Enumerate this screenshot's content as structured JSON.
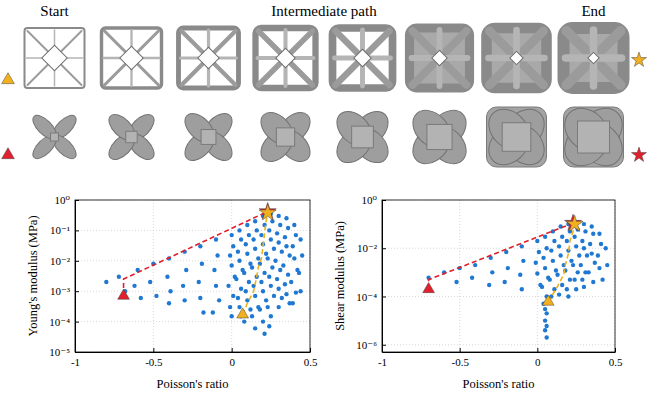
{
  "figure": {
    "headers": [
      "Start",
      "Intermediate path",
      "End"
    ]
  },
  "chart_data": [
    {
      "type": "scatter",
      "x_label": "Poisson's ratio",
      "y_label": "Young's modulus (MPa)",
      "log": "y",
      "grid": true,
      "xlim": [
        -1,
        0.5
      ],
      "xticks": [
        -1,
        -0.5,
        0,
        0.5
      ],
      "ylim": [
        1e-05,
        1
      ],
      "yticks": [
        {
          "value": 1,
          "label": "10⁰"
        },
        {
          "value": 0.1,
          "label": "10⁻¹"
        },
        {
          "value": 0.01,
          "label": "10⁻²"
        },
        {
          "value": 0.001,
          "label": "10⁻³"
        },
        {
          "value": 0.0001,
          "label": "10⁻⁴"
        },
        {
          "value": 1e-05,
          "label": "10⁻⁵"
        }
      ],
      "series": [
        {
          "type": "scatter",
          "color": "#1f78d1",
          "marker": "circle",
          "x": [
            0.3,
            0.31,
            0.29,
            0.3,
            0.32,
            0.28,
            0.31,
            0.29,
            0.3,
            0.32,
            0.3,
            0.35,
            0.36,
            0.34,
            0.35,
            0.37,
            0.33,
            0.36,
            0.34,
            0.35,
            0.37,
            0.4,
            0.41,
            0.39,
            0.4,
            0.42,
            0.38,
            0.41,
            0.39,
            0.44,
            0.45,
            0.43,
            0.44,
            0.25,
            0.26,
            0.24,
            0.25,
            0.27,
            0.23,
            0.26,
            0.24,
            0.25,
            0.27,
            0.23,
            0.25,
            0.24,
            0.2,
            0.21,
            0.19,
            0.2,
            0.22,
            0.18,
            0.21,
            0.19,
            0.2,
            0.22,
            0.18,
            0.2,
            0.21,
            0.15,
            0.16,
            0.14,
            0.15,
            0.17,
            0.13,
            0.16,
            0.14,
            0.15,
            0.17,
            0.13,
            0.15,
            0.1,
            0.11,
            0.09,
            0.1,
            0.12,
            0.08,
            0.11,
            0.09,
            0.1,
            0.12,
            0.08,
            0.05,
            0.06,
            0.04,
            0.05,
            0.07,
            0.03,
            0.06,
            0.04,
            0.05,
            0.06,
            0,
            0.01,
            -0.01,
            0,
            0.02,
            -0.02,
            0.01,
            -0.01,
            0,
            -0.1,
            -0.09,
            -0.11,
            -0.1,
            -0.08,
            -0.12,
            -0.2,
            -0.19,
            -0.21,
            -0.2,
            -0.18,
            -0.3,
            -0.29,
            -0.31,
            -0.3,
            -0.4,
            -0.41,
            -0.39,
            -0.4,
            -0.5,
            -0.52,
            -0.48,
            -0.6,
            -0.62,
            -0.58,
            -0.72,
            -0.68,
            -0.8
          ],
          "values": [
            0.3,
            0.15,
            0.08,
            0.04,
            0.02,
            0.01,
            0.005,
            0.0025,
            0.0012,
            0.0006,
            0.0003,
            0.25,
            0.12,
            0.06,
            0.03,
            0.015,
            0.007,
            0.0035,
            0.0017,
            0.0008,
            0.0004,
            0.15,
            0.07,
            0.03,
            0.012,
            0.005,
            0.002,
            0.0009,
            0.0004,
            0.05,
            0.015,
            0.004,
            0.001,
            0.35,
            0.2,
            0.1,
            0.05,
            0.025,
            0.012,
            0.006,
            0.003,
            0.0015,
            0.0007,
            0.0003,
            0.00015,
            7e-05,
            0.3,
            0.15,
            0.07,
            0.035,
            0.017,
            0.008,
            0.004,
            0.002,
            0.001,
            0.0005,
            0.00025,
            0.0001,
            4e-05,
            0.2,
            0.1,
            0.05,
            0.025,
            0.012,
            0.006,
            0.003,
            0.0015,
            0.0007,
            0.0003,
            0.00015,
            6e-05,
            0.15,
            0.07,
            0.035,
            0.017,
            0.008,
            0.004,
            0.002,
            0.001,
            0.0005,
            0.00025,
            0.0001,
            0.1,
            0.05,
            0.02,
            0.01,
            0.005,
            0.0025,
            0.0012,
            0.0006,
            0.0003,
            0.00015,
            0.07,
            0.03,
            0.015,
            0.007,
            0.003,
            0.0015,
            0.0007,
            0.0003,
            0.00015,
            0.05,
            0.015,
            0.005,
            0.0015,
            0.0005,
            0.0002,
            0.03,
            0.008,
            0.002,
            0.0006,
            0.0002,
            0.02,
            0.005,
            0.0015,
            0.0005,
            0.012,
            0.003,
            0.001,
            0.0004,
            0.008,
            0.002,
            0.0007,
            0.005,
            0.0015,
            0.0006,
            0.003,
            0.001,
            0.002
          ]
        },
        {
          "type": "line",
          "color": "#e0202c",
          "line_style": "dashed",
          "x": [
            -0.69,
            -0.69,
            0.23
          ],
          "values": [
            0.0007,
            0.0025,
            0.42
          ]
        },
        {
          "type": "line",
          "color": "#eab21b",
          "line_style": "dashed",
          "x": [
            0.07,
            0.1,
            0.14,
            0.16,
            0.17,
            0.19,
            0.2,
            0.21,
            0.22,
            0.23
          ],
          "values": [
            0.00017,
            0.0004,
            0.001,
            0.003,
            0.006,
            0.012,
            0.03,
            0.08,
            0.2,
            0.38
          ]
        },
        {
          "type": "scatter",
          "color": "#e0202c",
          "marker": "triangle",
          "x": [
            -0.69
          ],
          "values": [
            0.0007
          ]
        },
        {
          "type": "scatter",
          "color": "#e0202c",
          "marker": "star",
          "x": [
            0.23
          ],
          "values": [
            0.42
          ]
        },
        {
          "type": "scatter",
          "color": "#f2b01e",
          "marker": "triangle",
          "x": [
            0.07
          ],
          "values": [
            0.00017
          ]
        },
        {
          "type": "scatter",
          "color": "#f2b01e",
          "marker": "star",
          "x": [
            0.23
          ],
          "values": [
            0.38
          ]
        }
      ]
    },
    {
      "type": "scatter",
      "x_label": "Poisson's ratio",
      "y_label": "Shear modulus (MPa)",
      "log": "y",
      "grid": true,
      "xlim": [
        -1,
        0.5
      ],
      "xticks": [
        -1,
        -0.5,
        0,
        0.5
      ],
      "ylim": [
        5e-07,
        1
      ],
      "yticks": [
        {
          "value": 1,
          "label": "10⁰"
        },
        {
          "value": 0.01,
          "label": "10⁻²"
        },
        {
          "value": 0.0001,
          "label": "10⁻⁴"
        },
        {
          "value": 1e-06,
          "label": "10⁻⁶"
        }
      ],
      "series": [
        {
          "type": "scatter",
          "color": "#1f78d1",
          "marker": "circle",
          "x": [
            0.3,
            0.31,
            0.29,
            0.3,
            0.32,
            0.28,
            0.31,
            0.29,
            0.3,
            0.35,
            0.36,
            0.34,
            0.35,
            0.37,
            0.33,
            0.36,
            0.4,
            0.41,
            0.39,
            0.4,
            0.42,
            0.44,
            0.45,
            0.25,
            0.26,
            0.24,
            0.25,
            0.27,
            0.23,
            0.26,
            0.24,
            0.25,
            0.2,
            0.21,
            0.19,
            0.2,
            0.22,
            0.18,
            0.21,
            0.19,
            0.2,
            0.15,
            0.16,
            0.14,
            0.15,
            0.17,
            0.13,
            0.16,
            0.14,
            0.1,
            0.11,
            0.09,
            0.1,
            0.12,
            0.08,
            0.11,
            0.09,
            0.05,
            0.06,
            0.04,
            0.05,
            0.07,
            0.03,
            0.06,
            0.04,
            0.05,
            0.06,
            0.05,
            0.06,
            0.05,
            0.06,
            0,
            0.01,
            -0.01,
            0,
            0.02,
            -0.1,
            -0.09,
            -0.11,
            -0.1,
            -0.2,
            -0.19,
            -0.21,
            -0.3,
            -0.29,
            -0.31,
            -0.4,
            -0.42,
            -0.5,
            -0.52,
            -0.6,
            -0.7
          ],
          "values": [
            0.1,
            0.05,
            0.02,
            0.01,
            0.005,
            0.002,
            0.001,
            0.0005,
            0.00025,
            0.08,
            0.04,
            0.015,
            0.006,
            0.0025,
            0.001,
            0.0004,
            0.04,
            0.015,
            0.005,
            0.0015,
            0.0005,
            0.01,
            0.002,
            0.12,
            0.06,
            0.03,
            0.012,
            0.005,
            0.002,
            0.001,
            0.0005,
            0.0002,
            0.1,
            0.05,
            0.02,
            0.008,
            0.003,
            0.0012,
            0.0005,
            0.0002,
            0.0001,
            0.08,
            0.03,
            0.012,
            0.005,
            0.002,
            0.0008,
            0.0003,
            0.00012,
            0.05,
            0.02,
            0.008,
            0.003,
            0.0012,
            0.0005,
            0.0002,
            0.0001,
            0.03,
            0.01,
            0.004,
            0.0015,
            0.0006,
            0.00025,
            0.0001,
            5e-05,
            3e-05,
            2e-05,
            1e-05,
            6e-06,
            4e-06,
            2e-06,
            0.02,
            0.007,
            0.0025,
            0.0009,
            0.0003,
            0.012,
            0.003,
            0.0008,
            0.0002,
            0.007,
            0.0015,
            0.0004,
            0.004,
            0.001,
            0.0003,
            0.002,
            0.0006,
            0.0015,
            0.0004,
            0.001,
            0.0006
          ]
        },
        {
          "type": "line",
          "color": "#e0202c",
          "line_style": "dashed",
          "x": [
            -0.7,
            -0.7,
            0.23
          ],
          "values": [
            0.0002,
            0.0005,
            0.11
          ]
        },
        {
          "type": "line",
          "color": "#eab21b",
          "line_style": "dashed",
          "x": [
            0.07,
            0.12,
            0.17,
            0.18,
            0.2,
            0.21,
            0.23,
            0.24
          ],
          "values": [
            6e-05,
            0.0002,
            0.0008,
            0.002,
            0.006,
            0.02,
            0.05,
            0.1
          ]
        },
        {
          "type": "scatter",
          "color": "#e0202c",
          "marker": "triangle",
          "x": [
            -0.7
          ],
          "values": [
            0.0002
          ]
        },
        {
          "type": "scatter",
          "color": "#e0202c",
          "marker": "star",
          "x": [
            0.23
          ],
          "values": [
            0.11
          ]
        },
        {
          "type": "scatter",
          "color": "#f2b01e",
          "marker": "triangle",
          "x": [
            0.07
          ],
          "values": [
            6e-05
          ]
        },
        {
          "type": "scatter",
          "color": "#f2b01e",
          "marker": "star",
          "x": [
            0.24
          ],
          "values": [
            0.1
          ]
        }
      ]
    }
  ]
}
